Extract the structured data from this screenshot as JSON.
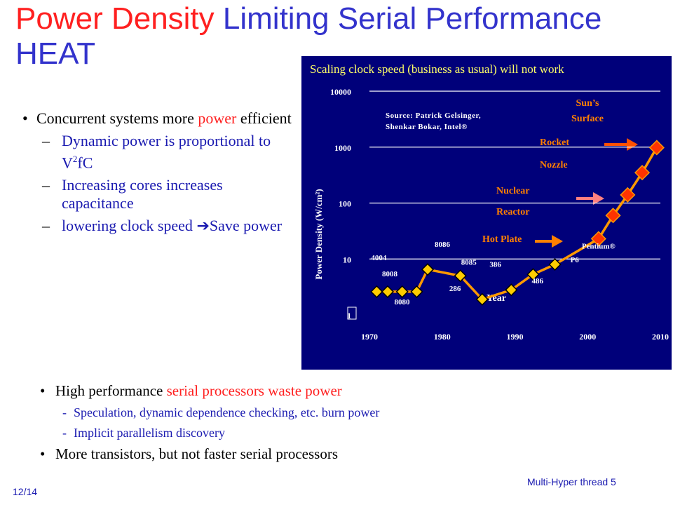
{
  "slide": {
    "title_red": "Power Density",
    "title_rest": " Limiting Serial Performance",
    "title_line2": "HEAT",
    "footer_left": "12/14",
    "footer_right": "Multi-Hyper thread 5",
    "colors": {
      "title": "#3333cc",
      "highlight": "#ff2020",
      "panel": "#00007a",
      "line": "#ff9900",
      "marker": "#ffcc00",
      "label_orange": "#ff8000"
    }
  },
  "left_bullets": {
    "b1_pre": "Concurrent systems more ",
    "b1_hl": "power",
    "b1_post": " efficient",
    "s1_pre": "Dynamic power is proportional to V",
    "s1_sup": "2",
    "s1_post": "fC",
    "s2": "Increasing cores increases capacitance",
    "s3_pre": "lowering clock speed ",
    "s3_arrow": "➔",
    "s3_post": "Save power",
    "dash": "–",
    "dot": "•"
  },
  "bottom_bullets": {
    "b1_pre": "High performance ",
    "b1_hl": "serial processors waste power",
    "s1": "Speculation, dynamic dependence checking, etc. burn power",
    "s2": "Implicit parallelism discovery",
    "b2": "More transistors, but not faster serial processors",
    "dash": "-",
    "dot": "•"
  },
  "chart_data": {
    "type": "line",
    "title": "Scaling clock speed (business as usual) will not work",
    "xlabel": "Year",
    "ylabel": "Power Density (W/cm²)",
    "xlim": [
      1970,
      2010
    ],
    "ylim": [
      1,
      10000
    ],
    "log_y": true,
    "x_ticks": [
      "1970",
      "1980",
      "1990",
      "2000",
      "2010"
    ],
    "y_ticks": [
      "1",
      "10",
      "100",
      "1000",
      "10000"
    ],
    "grid": true,
    "source": [
      "Source: Patrick Gelsinger,",
      "Shenkar Bokar, Intel®"
    ],
    "series": [
      {
        "points": [
          {
            "x": 1971,
            "y": 2.6,
            "label": "4004"
          },
          {
            "x": 1972.5,
            "y": 2.6,
            "label": "8008"
          },
          {
            "x": 1974.5,
            "y": 2.6,
            "label": ""
          },
          {
            "x": 1976.5,
            "y": 2.6,
            "label": "8080"
          },
          {
            "x": 1978,
            "y": 6.5,
            "label": "8086"
          },
          {
            "x": 1982.5,
            "y": 5,
            "label": "8085"
          },
          {
            "x": 1985.5,
            "y": 1.9,
            "label": "286"
          },
          {
            "x": 1989.5,
            "y": 2.8,
            "label": "386"
          },
          {
            "x": 1992.5,
            "y": 5.3,
            "label": "486"
          },
          {
            "x": 1995.5,
            "y": 8,
            "label": "P6"
          },
          {
            "x": 2001.5,
            "y": 23,
            "label": "Pentium®"
          },
          {
            "x": 2003.5,
            "y": 60,
            "label": ""
          },
          {
            "x": 2005.5,
            "y": 140,
            "label": ""
          },
          {
            "x": 2007.5,
            "y": 350,
            "label": ""
          },
          {
            "x": 2009.5,
            "y": 980,
            "label": ""
          }
        ]
      }
    ],
    "reference_levels": [
      {
        "label": "Hot Plate",
        "y": 24
      },
      {
        "label": "Nuclear Reactor",
        "y": 130
      },
      {
        "label": "Rocket Nozzle",
        "y": 1000
      },
      {
        "label": "Sun's Surface",
        "y": 7000
      }
    ],
    "reference_lines": [
      "Hot Plate",
      "Nuclear",
      "Reactor",
      "Rocket",
      "Nozzle",
      "Sun’s",
      "Surface"
    ]
  }
}
